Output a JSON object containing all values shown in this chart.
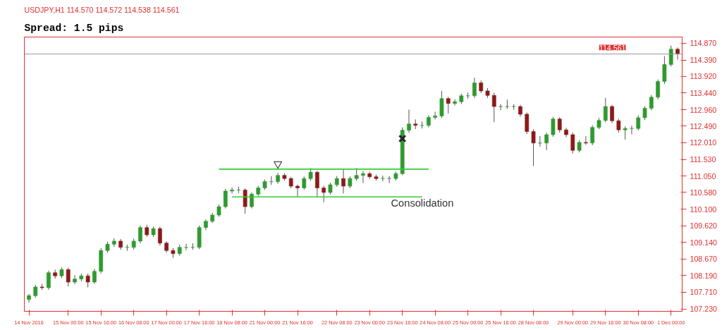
{
  "chart_data": {
    "type": "candlestick",
    "title": "USDJPY,H1  114.570 114.572 114.538 114.561",
    "subtitle": "Spread: 1.5 pips",
    "categories": [
      "14 Nov 2016",
      null,
      null,
      null,
      null,
      null,
      "15 Nov 00:00",
      null,
      null,
      null,
      null,
      "15 Nov 16:00",
      null,
      null,
      null,
      null,
      "16 Nov 08:00",
      null,
      null,
      null,
      null,
      "17 Nov 00:00",
      null,
      null,
      null,
      null,
      "17 Nov 16:00",
      null,
      null,
      null,
      null,
      "18 Nov 08:00",
      null,
      null,
      null,
      null,
      "21 Nov 00:00",
      null,
      null,
      null,
      null,
      "21 Nov 16:00",
      null,
      null,
      null,
      null,
      null,
      "22 Nov 08:00",
      null,
      null,
      null,
      null,
      "23 Nov 00:00",
      null,
      null,
      null,
      null,
      "23 Nov 16:00",
      null,
      null,
      null,
      null,
      "24 Nov 08:00",
      null,
      null,
      null,
      null,
      "25 Nov 00:00",
      null,
      null,
      null,
      null,
      "25 Nov 16:00",
      null,
      null,
      null,
      null,
      "28 Nov 08:00",
      null,
      null,
      null,
      null,
      null,
      "29 Nov 00:00",
      null,
      null,
      null,
      null,
      "29 Nov 16:00",
      null,
      null,
      null,
      null,
      "30 Nov 08:00",
      null,
      null,
      null,
      null,
      "1 Dec 00:00",
      null
    ],
    "ohlc": [
      [
        107.5,
        107.66,
        107.41,
        107.61
      ],
      [
        107.61,
        107.92,
        107.55,
        107.86
      ],
      [
        107.86,
        107.95,
        107.78,
        107.84
      ],
      [
        107.84,
        108.33,
        107.78,
        108.27
      ],
      [
        108.27,
        108.36,
        108.1,
        108.18
      ],
      [
        108.18,
        108.42,
        108.12,
        108.36
      ],
      [
        108.36,
        108.42,
        107.88,
        108.0
      ],
      [
        108.0,
        108.2,
        107.94,
        108.09
      ],
      [
        108.09,
        108.25,
        108.02,
        108.18
      ],
      [
        108.18,
        108.25,
        107.85,
        108.0
      ],
      [
        108.0,
        108.38,
        107.95,
        108.31
      ],
      [
        108.31,
        108.98,
        108.25,
        108.91
      ],
      [
        108.91,
        109.16,
        108.85,
        109.09
      ],
      [
        109.09,
        109.26,
        109.02,
        109.18
      ],
      [
        109.18,
        109.24,
        108.93,
        109.0
      ],
      [
        109.0,
        109.08,
        108.9,
        109.0
      ],
      [
        109.0,
        109.25,
        108.94,
        109.18
      ],
      [
        109.18,
        109.63,
        109.12,
        109.57
      ],
      [
        109.57,
        109.65,
        109.3,
        109.36
      ],
      [
        109.36,
        109.6,
        109.3,
        109.54
      ],
      [
        109.54,
        109.6,
        109.05,
        109.12
      ],
      [
        109.12,
        109.18,
        108.85,
        108.91
      ],
      [
        108.91,
        108.98,
        108.7,
        108.82
      ],
      [
        108.82,
        109.08,
        108.76,
        109.0
      ],
      [
        109.0,
        109.1,
        108.92,
        109.0
      ],
      [
        109.0,
        109.12,
        108.93,
        109.0
      ],
      [
        109.0,
        109.63,
        108.95,
        109.57
      ],
      [
        109.57,
        109.8,
        109.5,
        109.75
      ],
      [
        109.75,
        109.99,
        109.7,
        109.93
      ],
      [
        109.93,
        110.23,
        109.88,
        110.17
      ],
      [
        110.17,
        110.68,
        110.12,
        110.62
      ],
      [
        110.62,
        110.72,
        110.55,
        110.65
      ],
      [
        110.65,
        110.75,
        110.56,
        110.65
      ],
      [
        110.65,
        110.7,
        109.97,
        110.17
      ],
      [
        110.17,
        110.58,
        110.12,
        110.53
      ],
      [
        110.53,
        110.77,
        110.47,
        110.71
      ],
      [
        110.71,
        110.95,
        110.65,
        110.89
      ],
      [
        110.89,
        111.05,
        110.8,
        110.89
      ],
      [
        110.89,
        111.14,
        110.83,
        111.07
      ],
      [
        111.07,
        111.13,
        110.92,
        110.98
      ],
      [
        110.98,
        111.03,
        110.7,
        110.76
      ],
      [
        110.76,
        110.8,
        110.45,
        110.71
      ],
      [
        110.71,
        111.04,
        110.66,
        110.98
      ],
      [
        110.98,
        111.28,
        110.92,
        111.16
      ],
      [
        111.16,
        111.2,
        110.45,
        110.71
      ],
      [
        110.71,
        110.77,
        110.3,
        110.58
      ],
      [
        110.58,
        110.86,
        110.52,
        110.8
      ],
      [
        110.8,
        111.05,
        110.74,
        110.98
      ],
      [
        110.98,
        111.25,
        110.55,
        110.76
      ],
      [
        110.76,
        111.04,
        110.7,
        110.98
      ],
      [
        110.98,
        111.28,
        110.92,
        111.07
      ],
      [
        111.07,
        111.2,
        110.85,
        111.12
      ],
      [
        111.12,
        111.18,
        110.97,
        111.03
      ],
      [
        111.03,
        111.09,
        110.92,
        110.98
      ],
      [
        110.98,
        111.06,
        110.9,
        110.98
      ],
      [
        110.98,
        111.05,
        110.85,
        110.98
      ],
      [
        110.98,
        111.18,
        110.92,
        111.12
      ],
      [
        111.12,
        112.45,
        111.08,
        112.37
      ],
      [
        112.37,
        112.96,
        112.3,
        112.55
      ],
      [
        112.55,
        112.68,
        112.4,
        112.51
      ],
      [
        112.51,
        112.62,
        112.42,
        112.51
      ],
      [
        112.51,
        112.8,
        112.45,
        112.74
      ],
      [
        112.74,
        112.9,
        112.68,
        112.78
      ],
      [
        112.78,
        113.5,
        112.72,
        113.28
      ],
      [
        113.28,
        113.33,
        112.85,
        113.14
      ],
      [
        113.14,
        113.26,
        113.08,
        113.19
      ],
      [
        113.19,
        113.42,
        113.12,
        113.36
      ],
      [
        113.36,
        113.45,
        113.28,
        113.36
      ],
      [
        113.36,
        113.88,
        113.3,
        113.73
      ],
      [
        113.73,
        113.8,
        113.44,
        113.5
      ],
      [
        113.5,
        113.58,
        113.3,
        113.37
      ],
      [
        113.37,
        113.45,
        112.6,
        113.05
      ],
      [
        113.05,
        113.12,
        112.95,
        113.05
      ],
      [
        113.05,
        113.25,
        112.98,
        113.05
      ],
      [
        113.05,
        113.12,
        112.96,
        113.05
      ],
      [
        113.05,
        113.1,
        112.76,
        112.83
      ],
      [
        112.83,
        112.88,
        112.26,
        112.33
      ],
      [
        112.33,
        112.4,
        111.34,
        112.0
      ],
      [
        112.0,
        112.2,
        111.9,
        112.0
      ],
      [
        112.0,
        112.3,
        111.8,
        112.24
      ],
      [
        112.24,
        112.75,
        112.18,
        112.69
      ],
      [
        112.69,
        112.74,
        112.3,
        112.38
      ],
      [
        112.38,
        112.44,
        112.17,
        112.24
      ],
      [
        112.24,
        112.3,
        111.7,
        111.79
      ],
      [
        111.79,
        112.08,
        111.73,
        112.02
      ],
      [
        112.02,
        112.2,
        111.95,
        112.0
      ],
      [
        112.0,
        112.51,
        111.94,
        112.45
      ],
      [
        112.45,
        112.72,
        112.4,
        112.65
      ],
      [
        112.65,
        113.3,
        112.6,
        113.05
      ],
      [
        113.05,
        113.1,
        112.58,
        112.64
      ],
      [
        112.64,
        112.7,
        112.3,
        112.38
      ],
      [
        112.38,
        112.48,
        112.1,
        112.42
      ],
      [
        112.42,
        112.5,
        112.25,
        112.42
      ],
      [
        112.42,
        112.8,
        112.36,
        112.73
      ],
      [
        112.73,
        113.06,
        112.66,
        113.0
      ],
      [
        113.0,
        113.38,
        112.94,
        113.32
      ],
      [
        113.32,
        113.83,
        113.26,
        113.77
      ],
      [
        113.77,
        114.5,
        113.7,
        114.26
      ],
      [
        114.26,
        114.8,
        114.2,
        114.7
      ],
      [
        114.7,
        114.75,
        114.4,
        114.561
      ]
    ],
    "colors": [
      "#2f9a2f",
      "#2f9a2f",
      "#8b1a1a",
      "#2f9a2f",
      "#8b1a1a",
      "#2f9a2f",
      "#8b1a1a",
      "#2f9a2f",
      "#2f9a2f",
      "#8b1a1a",
      "#2f9a2f",
      "#2f9a2f",
      "#2f9a2f",
      "#2f9a2f",
      "#8b1a1a",
      "#2f9a2f",
      "#2f9a2f",
      "#2f9a2f",
      "#8b1a1a",
      "#2f9a2f",
      "#8b1a1a",
      "#8b1a1a",
      "#8b1a1a",
      "#2f9a2f",
      "#2f9a2f",
      "#2f9a2f",
      "#2f9a2f",
      "#2f9a2f",
      "#2f9a2f",
      "#2f9a2f",
      "#2f9a2f",
      "#2f9a2f",
      "#2f9a2f",
      "#8b1a1a",
      "#2f9a2f",
      "#2f9a2f",
      "#2f9a2f",
      "#2f9a2f",
      "#2f9a2f",
      "#8b1a1a",
      "#8b1a1a",
      "#8b1a1a",
      "#2f9a2f",
      "#2f9a2f",
      "#8b1a1a",
      "#8b1a1a",
      "#2f9a2f",
      "#2f9a2f",
      "#8b1a1a",
      "#2f9a2f",
      "#2f9a2f",
      "#2f9a2f",
      "#8b1a1a",
      "#8b1a1a",
      "#2f9a2f",
      "#2f9a2f",
      "#2f9a2f",
      "#2f9a2f",
      "#2f9a2f",
      "#8b1a1a",
      "#2f9a2f",
      "#2f9a2f",
      "#2f9a2f",
      "#2f9a2f",
      "#8b1a1a",
      "#2f9a2f",
      "#2f9a2f",
      "#2f9a2f",
      "#2f9a2f",
      "#8b1a1a",
      "#8b1a1a",
      "#8b1a1a",
      "#2f9a2f",
      "#2f9a2f",
      "#2f9a2f",
      "#8b1a1a",
      "#8b1a1a",
      "#8b1a1a",
      "#2f9a2f",
      "#2f9a2f",
      "#2f9a2f",
      "#8b1a1a",
      "#8b1a1a",
      "#8b1a1a",
      "#2f9a2f",
      "#8b1a1a",
      "#2f9a2f",
      "#2f9a2f",
      "#2f9a2f",
      "#8b1a1a",
      "#8b1a1a",
      "#2f9a2f",
      "#2f9a2f",
      "#2f9a2f",
      "#2f9a2f",
      "#2f9a2f",
      "#2f9a2f",
      "#2f9a2f",
      "#2f9a2f",
      "#8b1a1a"
    ],
    "series": [
      {
        "type": "line",
        "color": "#33cc33",
        "values": [
          null,
          null,
          null,
          null,
          null,
          null,
          null,
          null,
          null,
          null,
          null,
          null,
          null,
          null,
          null,
          null,
          null,
          null,
          null,
          null,
          null,
          null,
          null,
          null,
          null,
          null,
          null,
          null,
          null,
          111.25,
          111.25,
          111.25,
          111.25,
          111.25,
          111.25,
          111.25,
          111.25,
          111.25,
          111.25,
          111.25,
          111.25,
          111.25,
          111.25,
          111.25,
          111.25,
          111.25,
          111.25,
          111.25,
          111.25,
          111.25,
          111.25,
          111.25,
          111.25,
          111.25,
          111.25,
          111.25,
          111.25,
          111.25,
          111.25,
          111.25,
          111.25,
          111.25,
          null,
          null,
          null,
          null,
          null,
          null,
          null,
          null,
          null,
          null,
          null,
          null,
          null,
          null,
          null,
          null,
          null,
          null,
          null,
          null,
          null,
          null,
          null,
          null,
          null,
          null,
          null,
          null,
          null,
          null,
          null,
          null,
          null,
          null,
          null,
          null,
          null,
          null
        ]
      },
      {
        "type": "line",
        "color": "#33cc33",
        "values": [
          null,
          null,
          null,
          null,
          null,
          null,
          null,
          null,
          null,
          null,
          null,
          null,
          null,
          null,
          null,
          null,
          null,
          null,
          null,
          null,
          null,
          null,
          null,
          null,
          null,
          null,
          null,
          null,
          null,
          null,
          null,
          110.45,
          110.45,
          110.45,
          110.45,
          110.45,
          110.45,
          110.45,
          110.45,
          110.45,
          110.45,
          110.45,
          110.45,
          110.45,
          110.45,
          110.45,
          110.45,
          110.45,
          110.45,
          110.45,
          110.45,
          110.45,
          110.45,
          110.45,
          110.45,
          110.45,
          110.45,
          110.45,
          110.45,
          110.45,
          110.45,
          null,
          null,
          null,
          null,
          null,
          null,
          null,
          null,
          null,
          null,
          null,
          null,
          null,
          null,
          null,
          null,
          null,
          null,
          null,
          null,
          null,
          null,
          null,
          null,
          null,
          null,
          null,
          null,
          null,
          null,
          null,
          null,
          null,
          null,
          null,
          null,
          null,
          null,
          null
        ]
      },
      {
        "type": "scatter",
        "marker": "cross",
        "color": "#222222",
        "values": [
          null,
          null,
          null,
          null,
          null,
          null,
          null,
          null,
          null,
          null,
          null,
          null,
          null,
          null,
          null,
          null,
          null,
          null,
          null,
          null,
          null,
          null,
          null,
          null,
          null,
          null,
          null,
          null,
          null,
          null,
          null,
          null,
          null,
          null,
          null,
          null,
          null,
          null,
          null,
          null,
          null,
          null,
          null,
          null,
          null,
          null,
          null,
          null,
          null,
          null,
          null,
          null,
          null,
          null,
          null,
          null,
          null,
          112.13,
          null,
          null,
          null,
          null,
          null,
          null,
          null,
          null,
          null,
          null,
          null,
          null,
          null,
          null,
          null,
          null,
          null,
          null,
          null,
          null,
          null,
          null,
          null,
          null,
          null,
          null,
          null,
          null,
          null,
          null,
          null,
          null,
          null,
          null,
          null,
          null,
          null,
          null,
          null,
          null,
          null,
          null
        ]
      },
      {
        "type": "scatter",
        "marker": "triangle",
        "color": "#444444",
        "values": [
          null,
          null,
          null,
          null,
          null,
          null,
          null,
          null,
          null,
          null,
          null,
          null,
          null,
          null,
          null,
          null,
          null,
          null,
          null,
          null,
          null,
          null,
          null,
          null,
          null,
          null,
          null,
          null,
          null,
          null,
          null,
          null,
          null,
          null,
          null,
          null,
          null,
          null,
          111.4,
          null,
          null,
          null,
          null,
          null,
          null,
          null,
          null,
          null,
          null,
          null,
          null,
          null,
          null,
          null,
          null,
          null,
          null,
          null,
          null,
          null,
          null,
          null,
          null,
          null,
          null,
          null,
          null,
          null,
          null,
          null,
          null,
          null,
          null,
          null,
          null,
          null,
          null,
          null,
          null,
          null,
          null,
          null,
          null,
          null,
          null,
          null,
          null,
          null,
          null,
          null,
          null,
          null,
          null,
          null,
          null,
          null,
          null,
          null,
          null,
          null
        ]
      }
    ],
    "ref_lines": [
      {
        "axis": "y",
        "value": 114.561,
        "label": "114.561",
        "color": "#999999"
      }
    ],
    "annotations": [
      "Consolidation"
    ],
    "ylim": [
      107.16,
      115.05
    ],
    "yticks": [
      {
        "value": 107.23,
        "label": "107.230"
      },
      {
        "value": 107.71,
        "label": "107.710"
      },
      {
        "value": 108.19,
        "label": "108.190"
      },
      {
        "value": 108.67,
        "label": "108.670"
      },
      {
        "value": 109.14,
        "label": "109.140"
      },
      {
        "value": 109.62,
        "label": "109.620"
      },
      {
        "value": 110.1,
        "label": "110.100"
      },
      {
        "value": 110.58,
        "label": "110.580"
      },
      {
        "value": 111.05,
        "label": "111.050"
      },
      {
        "value": 111.53,
        "label": "111.530"
      },
      {
        "value": 112.01,
        "label": "112.010"
      },
      {
        "value": 112.49,
        "label": "112.490"
      },
      {
        "value": 112.96,
        "label": "112.960"
      },
      {
        "value": 113.44,
        "label": "113.440"
      },
      {
        "value": 113.92,
        "label": "113.920"
      },
      {
        "value": 114.39,
        "label": "114.390"
      },
      {
        "value": 114.87,
        "label": "114.870"
      }
    ],
    "grid": false
  }
}
